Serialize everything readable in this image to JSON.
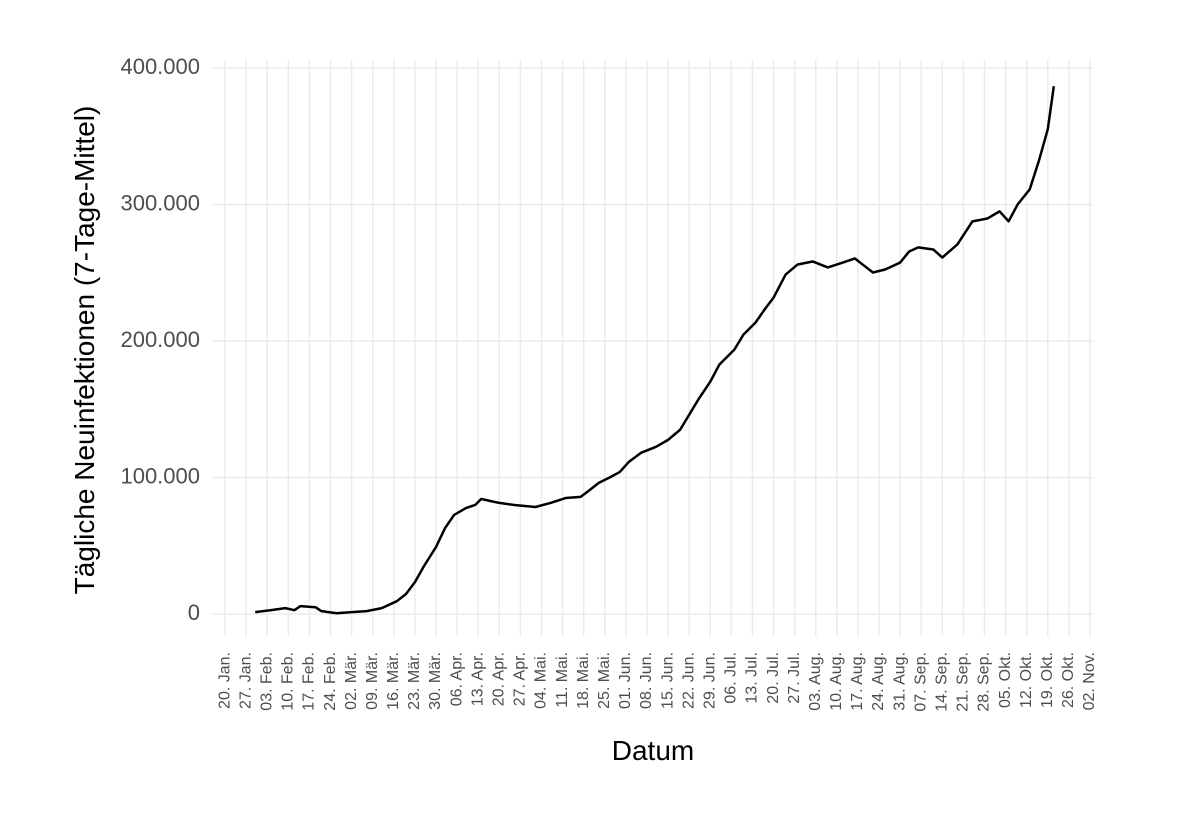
{
  "chart_data": {
    "type": "line",
    "x_label": "Datum",
    "y_label": "Tägliche Neuinfektionen (7-Tage-Mittel)",
    "x": [
      10,
      15,
      20,
      23,
      25,
      30,
      32,
      37,
      42,
      47,
      52,
      57,
      60,
      63,
      66,
      70,
      73,
      76,
      80,
      83,
      85,
      88,
      91,
      96,
      103,
      108,
      113,
      118,
      121,
      124,
      128,
      131,
      134,
      138,
      143,
      147,
      151,
      154,
      157,
      161,
      164,
      169,
      172,
      176,
      179,
      182,
      186,
      190,
      195,
      200,
      205,
      209,
      212,
      215,
      219,
      224,
      227,
      230,
      235,
      238,
      243,
      248,
      253,
      257,
      260,
      263,
      267,
      270,
      273,
      275
    ],
    "series": [
      {
        "color": "#000000",
        "values": [
          1500,
          2900,
          4400,
          2900,
          5900,
          5100,
          2200,
          700,
          1500,
          2200,
          4400,
          9500,
          14700,
          23500,
          35200,
          49200,
          63100,
          72700,
          77800,
          80000,
          84400,
          82900,
          81500,
          80000,
          78500,
          81500,
          85100,
          85900,
          91000,
          96200,
          100600,
          104200,
          111600,
          118200,
          122600,
          127700,
          135100,
          146100,
          157100,
          170300,
          182800,
          193800,
          204800,
          213600,
          223100,
          231900,
          248800,
          256200,
          258400,
          254000,
          257600,
          260600,
          255400,
          250300,
          252500,
          257600,
          265700,
          268700,
          267200,
          261300,
          270900,
          287800,
          289900,
          295100,
          287800,
          300200,
          311200,
          331800,
          355300,
          386800
        ]
      }
    ],
    "xlim": [
      -4,
      288
    ],
    "ylim": [
      -16000,
      406000
    ],
    "xticks": [
      {
        "value": 0,
        "label": "20. Jan."
      },
      {
        "value": 7,
        "label": "27. Jan."
      },
      {
        "value": 14,
        "label": "03. Feb."
      },
      {
        "value": 21,
        "label": "10. Feb."
      },
      {
        "value": 28,
        "label": "17. Feb."
      },
      {
        "value": 35,
        "label": "24. Feb."
      },
      {
        "value": 42,
        "label": "02. Mär."
      },
      {
        "value": 49,
        "label": "09. Mär."
      },
      {
        "value": 56,
        "label": "16. Mär."
      },
      {
        "value": 63,
        "label": "23. Mär."
      },
      {
        "value": 70,
        "label": "30. Mär."
      },
      {
        "value": 77,
        "label": "06. Apr."
      },
      {
        "value": 84,
        "label": "13. Apr."
      },
      {
        "value": 91,
        "label": "20. Apr."
      },
      {
        "value": 98,
        "label": "27. Apr."
      },
      {
        "value": 105,
        "label": "04. Mai."
      },
      {
        "value": 112,
        "label": "11. Mai."
      },
      {
        "value": 119,
        "label": "18. Mai."
      },
      {
        "value": 126,
        "label": "25. Mai."
      },
      {
        "value": 133,
        "label": "01. Jun."
      },
      {
        "value": 140,
        "label": "08. Jun."
      },
      {
        "value": 147,
        "label": "15. Jun."
      },
      {
        "value": 154,
        "label": "22. Jun."
      },
      {
        "value": 161,
        "label": "29. Jun."
      },
      {
        "value": 168,
        "label": "06. Jul."
      },
      {
        "value": 175,
        "label": "13. Jul."
      },
      {
        "value": 182,
        "label": "20. Jul."
      },
      {
        "value": 189,
        "label": "27. Jul."
      },
      {
        "value": 196,
        "label": "03. Aug."
      },
      {
        "value": 203,
        "label": "10. Aug."
      },
      {
        "value": 210,
        "label": "17. Aug."
      },
      {
        "value": 217,
        "label": "24. Aug."
      },
      {
        "value": 224,
        "label": "31. Aug."
      },
      {
        "value": 231,
        "label": "07. Sep."
      },
      {
        "value": 238,
        "label": "14. Sep."
      },
      {
        "value": 245,
        "label": "21. Sep."
      },
      {
        "value": 252,
        "label": "28. Sep."
      },
      {
        "value": 259,
        "label": "05. Okt."
      },
      {
        "value": 266,
        "label": "12. Okt."
      },
      {
        "value": 273,
        "label": "19. Okt."
      },
      {
        "value": 280,
        "label": "26. Okt."
      },
      {
        "value": 287,
        "label": "02. Nov."
      }
    ],
    "yticks": [
      0,
      {
        "value": 100000,
        "label": "100.000"
      },
      {
        "value": 200000,
        "label": "200.000"
      },
      {
        "value": 300000,
        "label": "300.000"
      },
      {
        "value": 400000,
        "label": "400.000"
      }
    ],
    "grid": true
  }
}
